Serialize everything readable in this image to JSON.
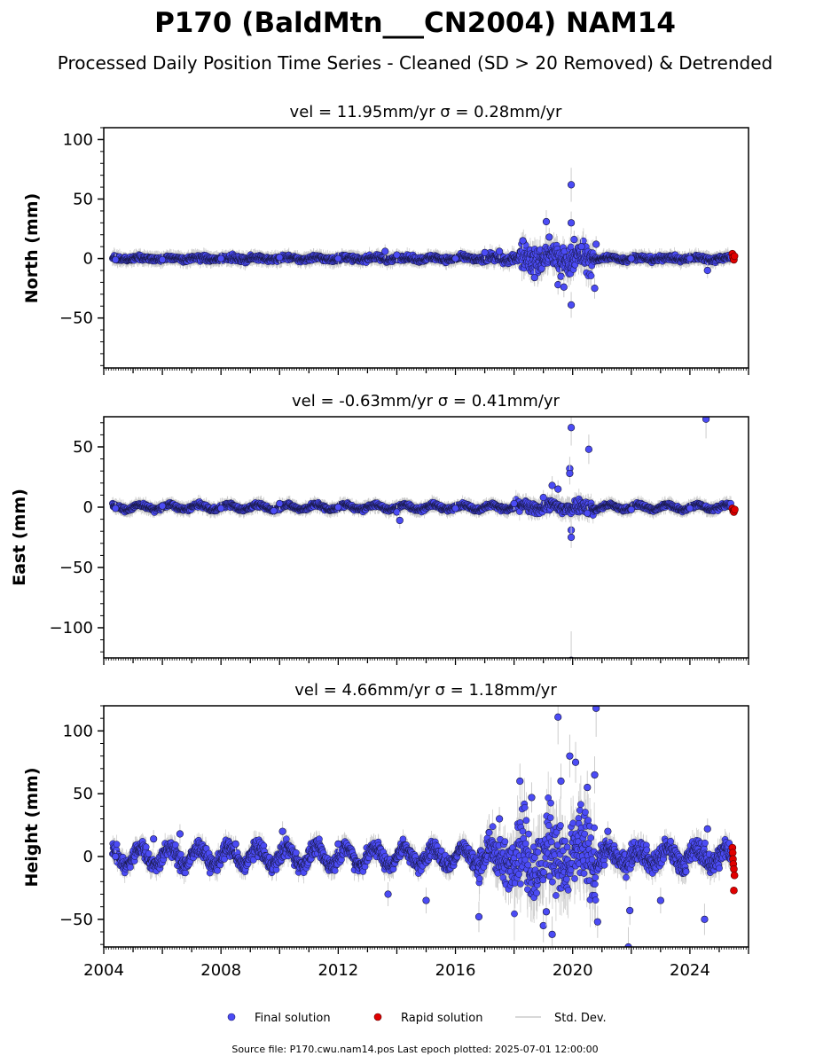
{
  "figure": {
    "title": "P170 (BaldMtn___CN2004) NAM14",
    "subtitle": "Processed Daily Position Time Series - Cleaned (SD > 20 Removed) & Detrended",
    "footer": "Source file: P170.cwu.nam14.pos  Last epoch plotted: 2025-07-01 12:00:00",
    "legend": [
      {
        "label": "Final solution",
        "color": "#4b4bf5",
        "marker": "circle"
      },
      {
        "label": "Rapid solution",
        "color": "#e00000",
        "marker": "circle"
      },
      {
        "label": "Std. Dev.",
        "color": "#cccccc",
        "marker": "line"
      }
    ]
  },
  "chart_data": [
    {
      "type": "scatter",
      "title": "vel = 11.95mm/yr   σ = 0.28mm/yr",
      "ylabel": "North (mm)",
      "xlim": [
        2004.0,
        2026.0
      ],
      "ylim": [
        -92,
        110
      ],
      "yticks": [
        -50,
        0,
        50,
        100
      ],
      "colors": {
        "final": "#4b4bf5",
        "rapid": "#e00000",
        "std": "#cccccc"
      },
      "segments": [
        {
          "from": 2004.3,
          "to": 2017.0,
          "noise": 1.6,
          "seasonal": 1.0
        },
        {
          "from": 2017.0,
          "to": 2018.2,
          "noise": 2.5,
          "seasonal": 1.5
        },
        {
          "from": 2018.2,
          "to": 2020.7,
          "noise": 8.0,
          "seasonal": 3.0
        },
        {
          "from": 2020.7,
          "to": 2025.4,
          "noise": 1.6,
          "seasonal": 1.0
        }
      ],
      "series": [
        {
          "name": "Final solution",
          "points": [
            {
              "x": 2004.4,
              "y": -1
            },
            {
              "x": 2006.0,
              "y": -1
            },
            {
              "x": 2008.0,
              "y": 0
            },
            {
              "x": 2010.0,
              "y": 1
            },
            {
              "x": 2012.0,
              "y": 0
            },
            {
              "x": 2013.6,
              "y": 6
            },
            {
              "x": 2014.0,
              "y": 3
            },
            {
              "x": 2016.0,
              "y": 0
            },
            {
              "x": 2017.0,
              "y": 5
            },
            {
              "x": 2017.5,
              "y": 6
            },
            {
              "x": 2018.3,
              "y": 15
            },
            {
              "x": 2018.7,
              "y": -16
            },
            {
              "x": 2019.1,
              "y": 31
            },
            {
              "x": 2019.2,
              "y": 18
            },
            {
              "x": 2019.5,
              "y": -22
            },
            {
              "x": 2019.6,
              "y": -15
            },
            {
              "x": 2019.7,
              "y": -24
            },
            {
              "x": 2019.95,
              "y": 62
            },
            {
              "x": 2019.95,
              "y": 30
            },
            {
              "x": 2019.95,
              "y": -39
            },
            {
              "x": 2020.05,
              "y": 16
            },
            {
              "x": 2020.3,
              "y": 10
            },
            {
              "x": 2020.75,
              "y": -25
            },
            {
              "x": 2020.8,
              "y": 12
            },
            {
              "x": 2022.0,
              "y": 0
            },
            {
              "x": 2024.0,
              "y": 0
            },
            {
              "x": 2024.6,
              "y": -10
            }
          ]
        },
        {
          "name": "Rapid solution",
          "points": [
            {
              "x": 2025.45,
              "y": 4
            },
            {
              "x": 2025.47,
              "y": 1
            },
            {
              "x": 2025.5,
              "y": -1
            },
            {
              "x": 2025.52,
              "y": 2
            }
          ]
        }
      ]
    },
    {
      "type": "scatter",
      "title": "vel = -0.63mm/yr   σ = 0.41mm/yr",
      "ylabel": "East (mm)",
      "xlim": [
        2004.0,
        2026.0
      ],
      "ylim": [
        -125,
        75
      ],
      "yticks": [
        -100,
        -50,
        0,
        50
      ],
      "colors": {
        "final": "#4b4bf5",
        "rapid": "#e00000",
        "std": "#cccccc"
      },
      "segments": [
        {
          "from": 2004.3,
          "to": 2018.0,
          "noise": 1.3,
          "seasonal": 2.0
        },
        {
          "from": 2018.0,
          "to": 2019.4,
          "noise": 3.0,
          "seasonal": 2.0
        },
        {
          "from": 2019.4,
          "to": 2020.7,
          "noise": 4.0,
          "seasonal": 2.0
        },
        {
          "from": 2020.7,
          "to": 2025.4,
          "noise": 1.3,
          "seasonal": 2.0
        }
      ],
      "series": [
        {
          "name": "Final solution",
          "points": [
            {
              "x": 2004.4,
              "y": -1
            },
            {
              "x": 2006.0,
              "y": 1
            },
            {
              "x": 2008.0,
              "y": -1
            },
            {
              "x": 2009.8,
              "y": -3
            },
            {
              "x": 2010.0,
              "y": 3
            },
            {
              "x": 2012.0,
              "y": 0
            },
            {
              "x": 2014.0,
              "y": -4
            },
            {
              "x": 2014.1,
              "y": -11
            },
            {
              "x": 2016.0,
              "y": -1
            },
            {
              "x": 2018.0,
              "y": 3
            },
            {
              "x": 2019.0,
              "y": 8
            },
            {
              "x": 2019.3,
              "y": 18
            },
            {
              "x": 2019.5,
              "y": 15
            },
            {
              "x": 2019.95,
              "y": 66
            },
            {
              "x": 2019.9,
              "y": 32
            },
            {
              "x": 2019.9,
              "y": 28
            },
            {
              "x": 2019.95,
              "y": -19
            },
            {
              "x": 2019.95,
              "y": -25
            },
            {
              "x": 2019.95,
              "y": -127
            },
            {
              "x": 2020.55,
              "y": 48
            },
            {
              "x": 2020.5,
              "y": -5
            },
            {
              "x": 2022.0,
              "y": -2
            },
            {
              "x": 2024.0,
              "y": -1
            },
            {
              "x": 2024.55,
              "y": 73
            }
          ]
        },
        {
          "name": "Rapid solution",
          "points": [
            {
              "x": 2025.45,
              "y": -1
            },
            {
              "x": 2025.48,
              "y": -3
            },
            {
              "x": 2025.5,
              "y": -4
            },
            {
              "x": 2025.53,
              "y": -2
            }
          ]
        }
      ]
    },
    {
      "type": "scatter",
      "title": "vel = 4.66mm/yr   σ = 1.18mm/yr",
      "ylabel": "Height (mm)",
      "xlim": [
        2004.0,
        2026.0
      ],
      "ylim": [
        -72,
        120
      ],
      "yticks": [
        -50,
        0,
        50,
        100
      ],
      "xticks": [
        2004,
        2008,
        2012,
        2016,
        2020,
        2024
      ],
      "colors": {
        "final": "#4b4bf5",
        "rapid": "#e00000",
        "std": "#cccccc"
      },
      "segments": [
        {
          "from": 2004.3,
          "to": 2016.8,
          "noise": 4.5,
          "seasonal": 7.0
        },
        {
          "from": 2016.8,
          "to": 2018.0,
          "noise": 12.0,
          "seasonal": 7.0
        },
        {
          "from": 2018.0,
          "to": 2020.8,
          "noise": 22.0,
          "seasonal": 12.0
        },
        {
          "from": 2020.8,
          "to": 2025.4,
          "noise": 6.0,
          "seasonal": 6.0
        }
      ],
      "series": [
        {
          "name": "Final solution",
          "points": [
            {
              "x": 2004.4,
              "y": 0
            },
            {
              "x": 2005.7,
              "y": 14
            },
            {
              "x": 2006.6,
              "y": 18
            },
            {
              "x": 2008.5,
              "y": 10
            },
            {
              "x": 2010.1,
              "y": 20
            },
            {
              "x": 2012.0,
              "y": 10
            },
            {
              "x": 2013.7,
              "y": -30
            },
            {
              "x": 2015.0,
              "y": -35
            },
            {
              "x": 2016.8,
              "y": -48
            },
            {
              "x": 2017.5,
              "y": 30
            },
            {
              "x": 2018.2,
              "y": 60
            },
            {
              "x": 2018.6,
              "y": 47
            },
            {
              "x": 2019.0,
              "y": -55
            },
            {
              "x": 2019.1,
              "y": -44
            },
            {
              "x": 2019.3,
              "y": -62
            },
            {
              "x": 2019.5,
              "y": 111
            },
            {
              "x": 2019.6,
              "y": 60
            },
            {
              "x": 2019.9,
              "y": 80
            },
            {
              "x": 2020.1,
              "y": 75
            },
            {
              "x": 2020.5,
              "y": 55
            },
            {
              "x": 2020.75,
              "y": 65
            },
            {
              "x": 2020.8,
              "y": 118
            },
            {
              "x": 2020.85,
              "y": -52
            },
            {
              "x": 2021.2,
              "y": 20
            },
            {
              "x": 2021.9,
              "y": -72
            },
            {
              "x": 2021.95,
              "y": -43
            },
            {
              "x": 2023.0,
              "y": -35
            },
            {
              "x": 2024.5,
              "y": -50
            },
            {
              "x": 2024.6,
              "y": 22
            }
          ]
        },
        {
          "name": "Rapid solution",
          "points": [
            {
              "x": 2025.45,
              "y": 7
            },
            {
              "x": 2025.46,
              "y": 3
            },
            {
              "x": 2025.47,
              "y": -2
            },
            {
              "x": 2025.48,
              "y": -6
            },
            {
              "x": 2025.5,
              "y": -10
            },
            {
              "x": 2025.52,
              "y": -15
            },
            {
              "x": 2025.5,
              "y": -27
            }
          ]
        }
      ]
    }
  ]
}
